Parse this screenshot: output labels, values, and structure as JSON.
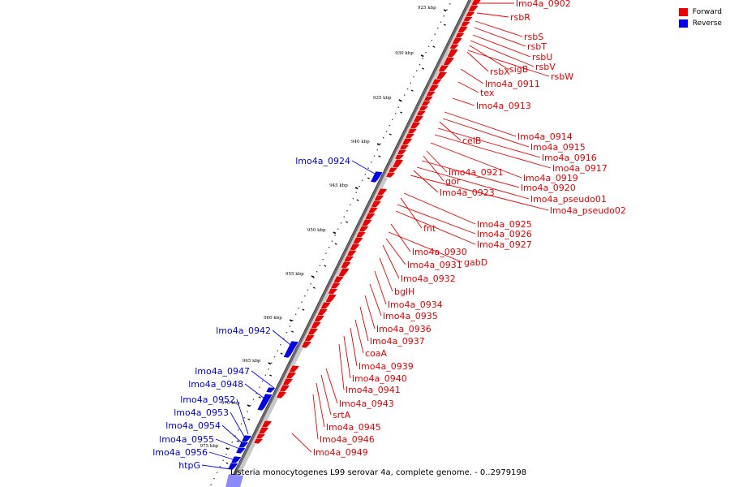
{
  "legend": {
    "forward_label": "Forward",
    "reverse_label": "Reverse",
    "forward_color": "#ee0000",
    "reverse_color": "#0000ee"
  },
  "caption": "Listeria monocytogenes L99 serovar 4a, complete genome. - 0..2979198",
  "scale_labels": [
    "925 kbp",
    "930 kbp",
    "935 kbp",
    "940 kbp",
    "945 kbp",
    "950 kbp",
    "955 kbp",
    "960 kbp",
    "965 kbp",
    "970 kbp",
    "975 kbp"
  ],
  "forward_genes": [
    "lmo4a_0902",
    "rsbR",
    "rsbS",
    "rsbT",
    "rsbU",
    "rsbV",
    "sigB",
    "rsbW",
    "rsbX",
    "lmo4a_0911",
    "tex",
    "lmo4a_0913",
    "lmo4a_0914",
    "lmo4a_0915",
    "celB",
    "lmo4a_0916",
    "lmo4a_0917",
    "lmo4a_0919",
    "lmo4a_0921",
    "gor",
    "lmo4a_0920",
    "lmo4a_pseudo01",
    "lmo4a_0923",
    "lmo4a_pseudo02",
    "lmo4a_0925",
    "fnt",
    "lmo4a_0926",
    "lmo4a_0927",
    "lmo4a_0930",
    "gabD",
    "lmo4a_0931",
    "lmo4a_0932",
    "bglH",
    "lmo4a_0934",
    "lmo4a_0935",
    "lmo4a_0936",
    "lmo4a_0937",
    "coaA",
    "lmo4a_0939",
    "lmo4a_0940",
    "lmo4a_0941",
    "lmo4a_0943",
    "srtA",
    "lmo4a_0945",
    "lmo4a_0946",
    "lmo4a_0949"
  ],
  "reverse_genes": [
    "lmo4a_0924",
    "lmo4a_0942",
    "lmo4a_0947",
    "lmo4a_0948",
    "lmo4a_0952",
    "lmo4a_0953",
    "lmo4a_0954",
    "lmo4a_0955",
    "lmo4a_0956",
    "htpG"
  ]
}
